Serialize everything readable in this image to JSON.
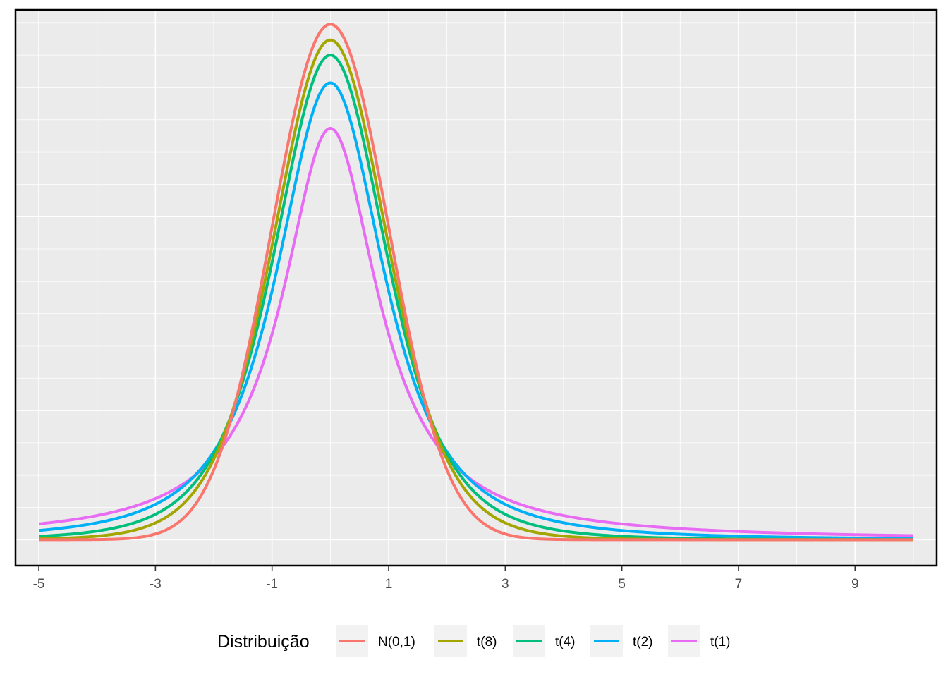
{
  "chart_data": {
    "type": "line",
    "title": "",
    "xlabel": "",
    "ylabel": "",
    "xlim": [
      -5.4,
      10.4
    ],
    "ylim": [
      -0.02,
      0.41
    ],
    "x_ticks": [
      "-5",
      "-3",
      "-1",
      "1",
      "3",
      "5",
      "7",
      "9"
    ],
    "x_tick_values": [
      -5,
      -3,
      -1,
      1,
      3,
      5,
      7,
      9
    ],
    "y_labels_shown": false,
    "grid": true,
    "panel_background": "#ebebeb",
    "grid_color": "#ffffff",
    "legend": {
      "position": "bottom",
      "title": "Distribuição"
    },
    "x_range_plotted": [
      -5,
      10
    ],
    "series": [
      {
        "name": "N(0,1)",
        "color": "#F8766D",
        "distribution": "normal",
        "df": null
      },
      {
        "name": "t(8)",
        "color": "#A3A500",
        "distribution": "student-t",
        "df": 8
      },
      {
        "name": "t(4)",
        "color": "#00BF7D",
        "distribution": "student-t",
        "df": 4
      },
      {
        "name": "t(2)",
        "color": "#00B0F6",
        "distribution": "student-t",
        "df": 2
      },
      {
        "name": "t(1)",
        "color": "#E76BF3",
        "distribution": "student-t",
        "df": 1
      }
    ],
    "peak_values": [
      0.399,
      0.387,
      0.375,
      0.354,
      0.318
    ]
  }
}
